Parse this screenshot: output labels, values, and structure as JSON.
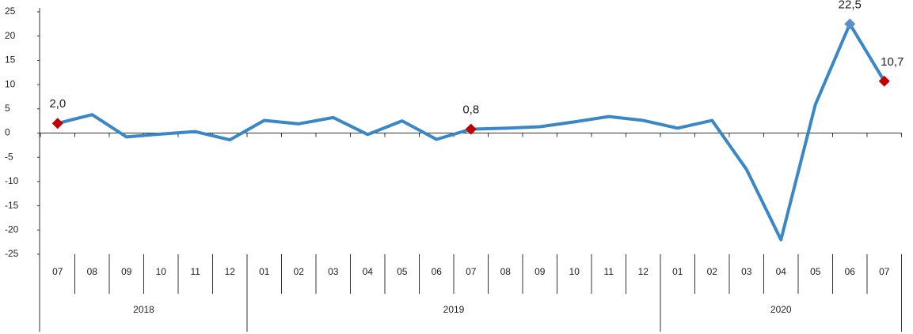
{
  "chart_data": {
    "type": "line",
    "categories": [
      "07",
      "08",
      "09",
      "10",
      "11",
      "12",
      "01",
      "02",
      "03",
      "04",
      "05",
      "06",
      "07",
      "08",
      "09",
      "10",
      "11",
      "12",
      "01",
      "02",
      "03",
      "04",
      "05",
      "06",
      "07"
    ],
    "years": [
      "2018",
      "2019",
      "2020"
    ],
    "series": [
      {
        "color": "#3a87c8",
        "values": [
          2.0,
          3.8,
          -0.8,
          -0.2,
          0.3,
          -1.4,
          2.6,
          1.9,
          3.2,
          -0.3,
          2.5,
          -1.3,
          0.8,
          1.0,
          1.3,
          2.3,
          3.4,
          2.6,
          1.0,
          2.6,
          -7.5,
          -22.0,
          5.9,
          22.5,
          10.7
        ],
        "value_labels": [
          "2,0",
          null,
          null,
          null,
          null,
          null,
          null,
          null,
          null,
          null,
          null,
          null,
          "0,8",
          null,
          null,
          null,
          null,
          null,
          null,
          null,
          null,
          null,
          null,
          "22,5",
          "10,7"
        ],
        "marker_colors": [
          "#c00000",
          null,
          null,
          null,
          null,
          null,
          null,
          null,
          null,
          null,
          null,
          null,
          "#c00000",
          null,
          null,
          null,
          null,
          null,
          null,
          null,
          null,
          null,
          null,
          "#5b8fc9",
          "#c00000"
        ]
      }
    ],
    "ylim": [
      -25,
      25
    ],
    "yticks": [
      25,
      20,
      15,
      10,
      5,
      0,
      -5,
      -10,
      -15,
      -20,
      -25
    ]
  }
}
